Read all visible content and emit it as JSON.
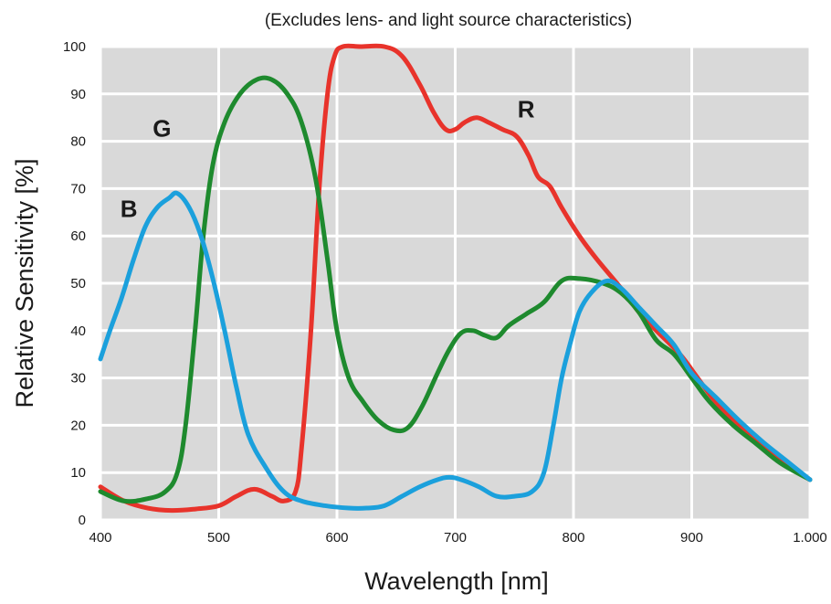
{
  "chart_data": {
    "type": "line",
    "subtitle": "(Excludes lens- and light source characteristics)",
    "xlabel": "Wavelength [nm]",
    "ylabel": "Relative Sensitivity [%]",
    "xlim": [
      400,
      1000
    ],
    "ylim": [
      0,
      100
    ],
    "x_ticks": [
      400,
      500,
      600,
      700,
      800,
      900,
      1000
    ],
    "x_tick_labels": [
      "400",
      "500",
      "600",
      "700",
      "800",
      "900",
      "1.000"
    ],
    "y_ticks": [
      0,
      10,
      20,
      30,
      40,
      50,
      60,
      70,
      80,
      90,
      100
    ],
    "y_tick_labels": [
      "0",
      "10",
      "20",
      "30",
      "40",
      "50",
      "60",
      "70",
      "80",
      "90",
      "100"
    ],
    "grid": true,
    "background_color": "#d9d9d9",
    "grid_color": "#ffffff",
    "series": [
      {
        "name": "R",
        "color": "#e8332b",
        "label_at": [
          760,
          85
        ],
        "points": [
          [
            400,
            7
          ],
          [
            420,
            4
          ],
          [
            440,
            2.5
          ],
          [
            460,
            2
          ],
          [
            480,
            2.3
          ],
          [
            500,
            3
          ],
          [
            515,
            5
          ],
          [
            530,
            6.5
          ],
          [
            545,
            5
          ],
          [
            555,
            4
          ],
          [
            565,
            6
          ],
          [
            570,
            15
          ],
          [
            578,
            40
          ],
          [
            585,
            70
          ],
          [
            592,
            90
          ],
          [
            598,
            98
          ],
          [
            605,
            100
          ],
          [
            620,
            100
          ],
          [
            640,
            100
          ],
          [
            655,
            98
          ],
          [
            670,
            92
          ],
          [
            682,
            86
          ],
          [
            692,
            82.5
          ],
          [
            700,
            82.5
          ],
          [
            708,
            84
          ],
          [
            718,
            85
          ],
          [
            728,
            84
          ],
          [
            740,
            82.5
          ],
          [
            752,
            81
          ],
          [
            762,
            77
          ],
          [
            770,
            72.5
          ],
          [
            780,
            70.5
          ],
          [
            790,
            66
          ],
          [
            805,
            60
          ],
          [
            820,
            55
          ],
          [
            840,
            49
          ],
          [
            855,
            44
          ],
          [
            870,
            40
          ],
          [
            890,
            35
          ],
          [
            905,
            30
          ],
          [
            920,
            25
          ],
          [
            940,
            20
          ],
          [
            960,
            16
          ],
          [
            980,
            12
          ],
          [
            1000,
            8.5
          ]
        ]
      },
      {
        "name": "G",
        "color": "#1e8a2e",
        "label_at": [
          452,
          81
        ],
        "points": [
          [
            400,
            6
          ],
          [
            420,
            4
          ],
          [
            440,
            4.5
          ],
          [
            455,
            6
          ],
          [
            465,
            10
          ],
          [
            472,
            20
          ],
          [
            480,
            40
          ],
          [
            487,
            60
          ],
          [
            495,
            75
          ],
          [
            505,
            84
          ],
          [
            518,
            90
          ],
          [
            532,
            93
          ],
          [
            545,
            93
          ],
          [
            558,
            90
          ],
          [
            570,
            84
          ],
          [
            582,
            72
          ],
          [
            592,
            55
          ],
          [
            600,
            40
          ],
          [
            610,
            30
          ],
          [
            622,
            25
          ],
          [
            635,
            21
          ],
          [
            648,
            19
          ],
          [
            660,
            19.5
          ],
          [
            672,
            24
          ],
          [
            685,
            31
          ],
          [
            695,
            36
          ],
          [
            705,
            39.5
          ],
          [
            715,
            40
          ],
          [
            725,
            39
          ],
          [
            735,
            38.5
          ],
          [
            745,
            41
          ],
          [
            760,
            43.5
          ],
          [
            775,
            46
          ],
          [
            790,
            50.5
          ],
          [
            805,
            51
          ],
          [
            825,
            50
          ],
          [
            840,
            48
          ],
          [
            855,
            44
          ],
          [
            870,
            38
          ],
          [
            885,
            35
          ],
          [
            900,
            30
          ],
          [
            915,
            25
          ],
          [
            935,
            20
          ],
          [
            955,
            16
          ],
          [
            975,
            12
          ],
          [
            1000,
            8.5
          ]
        ]
      },
      {
        "name": "B",
        "color": "#1ba0dc",
        "label_at": [
          424,
          64
        ],
        "points": [
          [
            400,
            34
          ],
          [
            408,
            40
          ],
          [
            418,
            47
          ],
          [
            428,
            55
          ],
          [
            438,
            62
          ],
          [
            448,
            66
          ],
          [
            458,
            68
          ],
          [
            465,
            69
          ],
          [
            475,
            66
          ],
          [
            485,
            60
          ],
          [
            495,
            51
          ],
          [
            505,
            40
          ],
          [
            515,
            28
          ],
          [
            525,
            18
          ],
          [
            540,
            11
          ],
          [
            555,
            6
          ],
          [
            570,
            4
          ],
          [
            590,
            3
          ],
          [
            610,
            2.5
          ],
          [
            625,
            2.5
          ],
          [
            640,
            3
          ],
          [
            655,
            5
          ],
          [
            670,
            7
          ],
          [
            685,
            8.5
          ],
          [
            695,
            9
          ],
          [
            705,
            8.5
          ],
          [
            720,
            7
          ],
          [
            735,
            5
          ],
          [
            750,
            5
          ],
          [
            765,
            6
          ],
          [
            775,
            10
          ],
          [
            783,
            20
          ],
          [
            790,
            30
          ],
          [
            798,
            38
          ],
          [
            805,
            44
          ],
          [
            815,
            48
          ],
          [
            828,
            50.5
          ],
          [
            840,
            49
          ],
          [
            855,
            45
          ],
          [
            870,
            41
          ],
          [
            885,
            37
          ],
          [
            900,
            31
          ],
          [
            920,
            26
          ],
          [
            940,
            21
          ],
          [
            960,
            16.5
          ],
          [
            980,
            12.5
          ],
          [
            1000,
            8.5
          ]
        ]
      }
    ]
  }
}
